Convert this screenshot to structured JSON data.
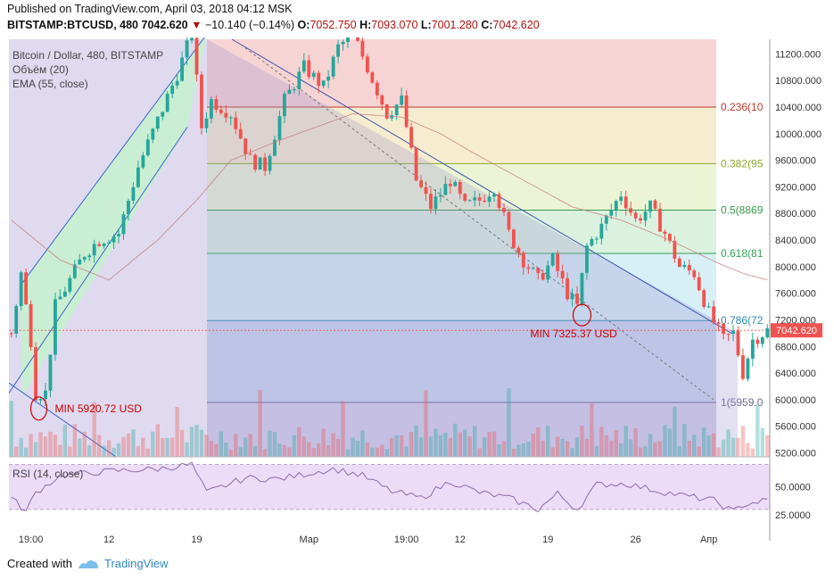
{
  "header": {
    "published": "Published on TradingView.com, April 03, 2018 04:12 MSK",
    "symbol": "BITSTAMP:BTCUSD, 480",
    "last": "7042.620",
    "change": "−10.140 (−0.14%)",
    "o_label": "O:",
    "o": "7052.750",
    "h_label": "H:",
    "h": "7093.070",
    "l_label": "L:",
    "l": "7001.280",
    "c_label": "C:",
    "c": "7042.620"
  },
  "legend": {
    "title": "Bitcoin / Dollar, 480, BITSTAMP",
    "volume": "Объём (20)",
    "ema": "EMA (55, close)"
  },
  "rsi_label": "RSI (14, close)",
  "footer": {
    "created_with": "Created with",
    "brand": "TradingView"
  },
  "colors": {
    "up": "#26a69a",
    "down": "#ef5350",
    "fib_line": "#2f9e5e",
    "channel_fill": "#c7f0cf",
    "triangle_fill": "#b9aedb",
    "annotation": "#cc0000"
  },
  "chart_data": [
    {
      "type": "candlestick",
      "symbol": "BITSTAMP:BTCUSD",
      "interval": "480",
      "y_axis_labels": [
        "11200.000",
        "10800.000",
        "10400.000",
        "10000.000",
        "9600.000",
        "9200.000",
        "8800.000",
        "8400.000",
        "8000.000",
        "7600.000",
        "7200.000",
        "6800.000",
        "6400.000",
        "6000.000",
        "5600.000",
        "5200.000"
      ],
      "ylim": [
        5140,
        11420
      ],
      "x_axis_labels": [
        "19:00",
        "12",
        "19",
        "Мар",
        "19:00",
        "12",
        "19",
        "26",
        "Апр"
      ],
      "last_price_label": "7042.620",
      "ohlc_waypoints": [
        [
          0,
          7000
        ],
        [
          2,
          7900
        ],
        [
          4,
          6900
        ],
        [
          5,
          6100
        ],
        [
          7,
          6100
        ],
        [
          9,
          7400
        ],
        [
          12,
          7800
        ],
        [
          15,
          8200
        ],
        [
          18,
          8400
        ],
        [
          22,
          8500
        ],
        [
          26,
          9500
        ],
        [
          30,
          10200
        ],
        [
          34,
          10900
        ],
        [
          37,
          11500
        ],
        [
          39,
          10100
        ],
        [
          41,
          10500
        ],
        [
          45,
          10300
        ],
        [
          49,
          9600
        ],
        [
          52,
          9500
        ],
        [
          56,
          10500
        ],
        [
          60,
          11000
        ],
        [
          64,
          10700
        ],
        [
          67,
          11300
        ],
        [
          70,
          11500
        ],
        [
          73,
          11000
        ],
        [
          77,
          10300
        ],
        [
          80,
          10500
        ],
        [
          83,
          9300
        ],
        [
          86,
          8900
        ],
        [
          90,
          9300
        ],
        [
          93,
          8900
        ],
        [
          96,
          9000
        ],
        [
          99,
          9200
        ],
        [
          102,
          8500
        ],
        [
          105,
          8100
        ],
        [
          108,
          7800
        ],
        [
          111,
          8100
        ],
        [
          114,
          7600
        ],
        [
          116,
          7400
        ],
        [
          118,
          8300
        ],
        [
          121,
          8600
        ],
        [
          125,
          9100
        ],
        [
          128,
          8700
        ],
        [
          131,
          8900
        ],
        [
          134,
          8500
        ],
        [
          137,
          8000
        ],
        [
          140,
          7900
        ],
        [
          143,
          7300
        ],
        [
          146,
          6900
        ],
        [
          148,
          7000
        ],
        [
          150,
          6400
        ],
        [
          152,
          6900
        ],
        [
          155,
          7040
        ]
      ],
      "ema_waypoints": [
        [
          0,
          8700
        ],
        [
          10,
          8100
        ],
        [
          20,
          7800
        ],
        [
          30,
          8400
        ],
        [
          38,
          9000
        ],
        [
          45,
          9600
        ],
        [
          55,
          9900
        ],
        [
          70,
          10300
        ],
        [
          80,
          10250
        ],
        [
          88,
          10000
        ],
        [
          95,
          9700
        ],
        [
          105,
          9300
        ],
        [
          115,
          8900
        ],
        [
          125,
          8700
        ],
        [
          135,
          8400
        ],
        [
          145,
          8050
        ],
        [
          150,
          7900
        ],
        [
          155,
          7800
        ]
      ]
    },
    {
      "type": "fibonacci_retracement",
      "levels": [
        {
          "label": "0.236(10",
          "value": 10400
        },
        {
          "label": "0.382(95",
          "value": 9550
        },
        {
          "label": "0.5(8869",
          "value": 8850
        },
        {
          "label": "0.618(81",
          "value": 8200
        },
        {
          "label": "0.786(72",
          "value": 7190
        },
        {
          "label": "1(5959.0",
          "value": 5959
        }
      ]
    },
    {
      "type": "annotations",
      "items": [
        {
          "text": "MIN 5920.72 USD",
          "value": 5920.72
        },
        {
          "text": "MIN 7325.37 USD",
          "value": 7325.37
        }
      ]
    },
    {
      "type": "rsi",
      "y_axis_labels": [
        "50.0000",
        "25.0000"
      ],
      "ylim": [
        10,
        72
      ],
      "waypoints": [
        [
          0,
          40
        ],
        [
          3,
          28
        ],
        [
          5,
          45
        ],
        [
          10,
          60
        ],
        [
          20,
          64
        ],
        [
          30,
          66
        ],
        [
          37,
          70
        ],
        [
          40,
          45
        ],
        [
          48,
          58
        ],
        [
          55,
          57
        ],
        [
          62,
          63
        ],
        [
          66,
          66
        ],
        [
          72,
          60
        ],
        [
          78,
          46
        ],
        [
          84,
          40
        ],
        [
          90,
          55
        ],
        [
          96,
          45
        ],
        [
          102,
          40
        ],
        [
          108,
          30
        ],
        [
          112,
          44
        ],
        [
          116,
          30
        ],
        [
          120,
          52
        ],
        [
          126,
          53
        ],
        [
          132,
          47
        ],
        [
          138,
          42
        ],
        [
          144,
          38
        ],
        [
          148,
          28
        ],
        [
          150,
          34
        ],
        [
          152,
          36
        ],
        [
          155,
          38
        ]
      ]
    }
  ]
}
